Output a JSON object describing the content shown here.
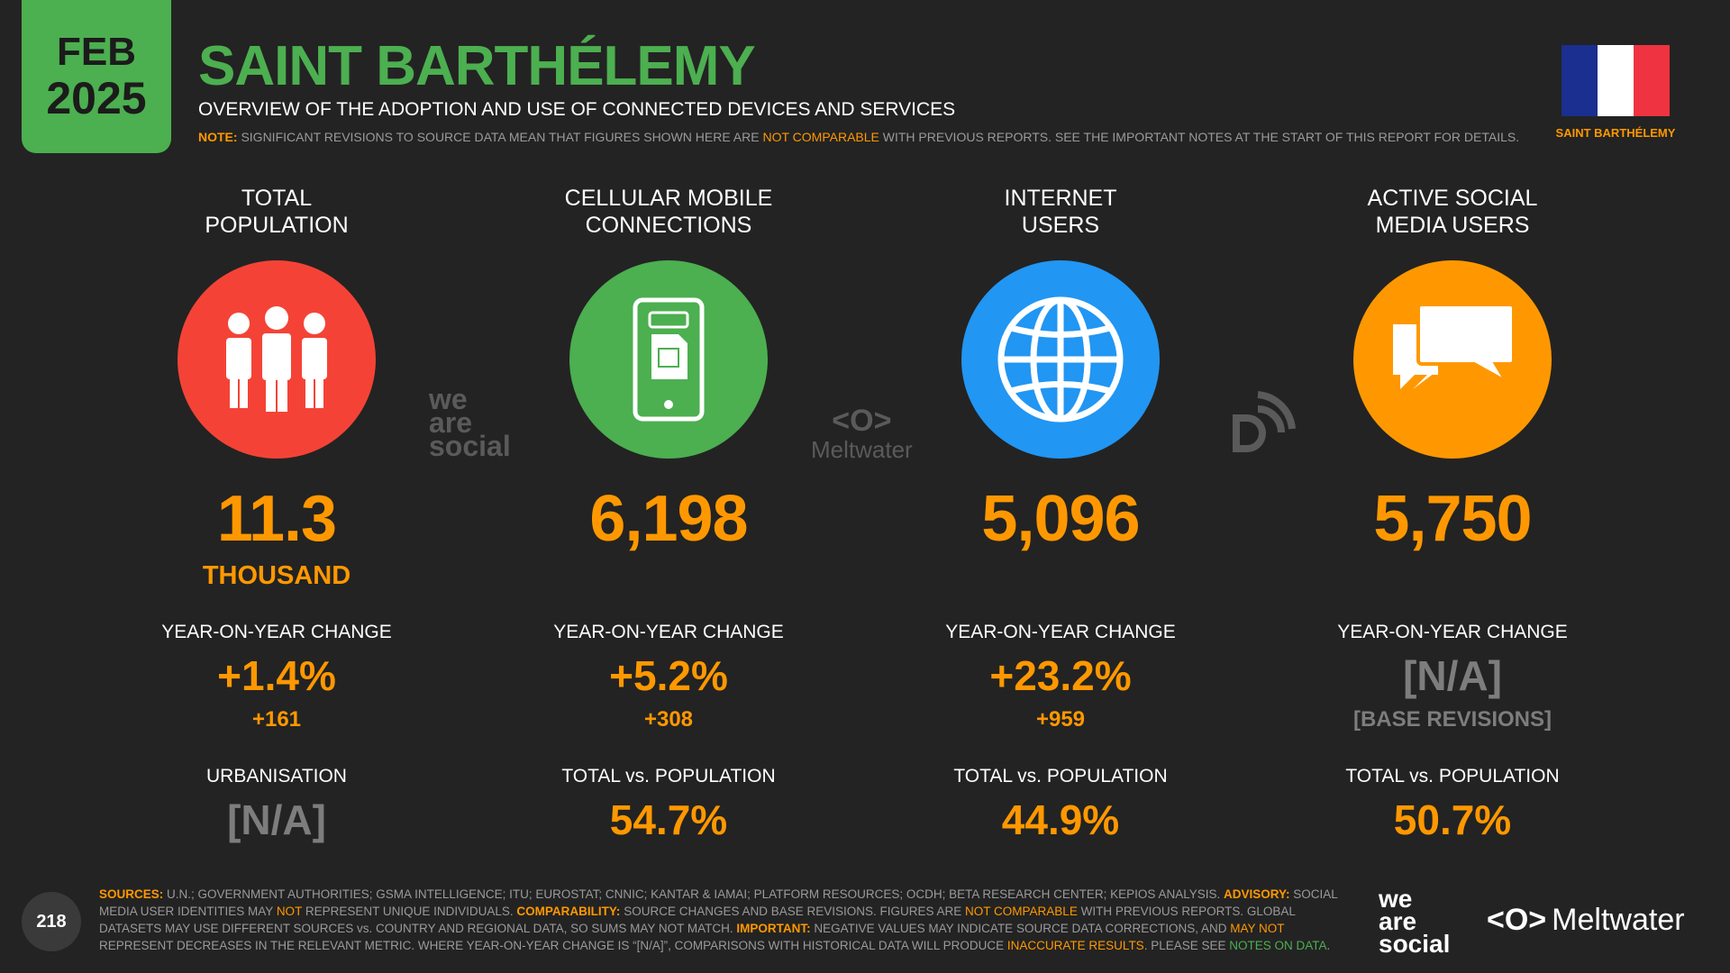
{
  "badge": {
    "month": "FEB",
    "year": "2025"
  },
  "title": "SAINT BARTHÉLEMY",
  "subtitle": "OVERVIEW OF THE ADOPTION AND USE OF CONNECTED DEVICES AND SERVICES",
  "note": {
    "label": "NOTE:",
    "text1": "SIGNIFICANT REVISIONS TO SOURCE DATA MEAN THAT FIGURES SHOWN HERE ARE",
    "highlight": "NOT COMPARABLE",
    "text2": "WITH PREVIOUS REPORTS. SEE THE IMPORTANT NOTES AT THE START OF THIS REPORT FOR DETAILS."
  },
  "flag": {
    "label": "SAINT BARTHÉLEMY",
    "colors": [
      "#1a2f8f",
      "#ffffff",
      "#ef3340"
    ]
  },
  "colors": {
    "green": "#4caf50",
    "orange": "#ff9800",
    "red": "#f44336",
    "blue": "#2196f3",
    "background": "#232323"
  },
  "columns": [
    {
      "heading_line1": "TOTAL",
      "heading_line2": "POPULATION",
      "icon": "people-icon",
      "color": "#f44336",
      "value": "11.3",
      "unit": "THOUSAND",
      "change_label": "YEAR-ON-YEAR CHANGE",
      "change_pct": "+1.4%",
      "change_abs": "+161",
      "bottom_label": "URBANISATION",
      "bottom_value": "[N/A]"
    },
    {
      "heading_line1": "CELLULAR MOBILE",
      "heading_line2": "CONNECTIONS",
      "icon": "mobile-phone-icon",
      "color": "#4caf50",
      "value": "6,198",
      "unit": "",
      "change_label": "YEAR-ON-YEAR CHANGE",
      "change_pct": "+5.2%",
      "change_abs": "+308",
      "bottom_label": "TOTAL vs. POPULATION",
      "bottom_value": "54.7%"
    },
    {
      "heading_line1": "INTERNET",
      "heading_line2": "USERS",
      "icon": "globe-icon",
      "color": "#2196f3",
      "value": "5,096",
      "unit": "",
      "change_label": "YEAR-ON-YEAR CHANGE",
      "change_pct": "+23.2%",
      "change_abs": "+959",
      "bottom_label": "TOTAL vs. POPULATION",
      "bottom_value": "44.9%"
    },
    {
      "heading_line1": "ACTIVE SOCIAL",
      "heading_line2": "MEDIA USERS",
      "icon": "speech-bubbles-icon",
      "color": "#ff9800",
      "value": "5,750",
      "unit": "",
      "change_label": "YEAR-ON-YEAR CHANGE",
      "change_pct": "[N/A]",
      "change_abs": "[BASE REVISIONS]",
      "bottom_label": "TOTAL vs. POPULATION",
      "bottom_value": "50.7%"
    }
  ],
  "mid_logos": {
    "we": "we",
    "are": "are",
    "social": "social",
    "meltwater": "Meltwater"
  },
  "footer": {
    "sources_label": "SOURCES:",
    "sources": "U.N.; GOVERNMENT AUTHORITIES; GSMA INTELLIGENCE; ITU; EUROSTAT; CNNIC; KANTAR & IAMAI; PLATFORM RESOURCES; OCDH; BETA RESEARCH CENTER; KEPIOS ANALYSIS.",
    "advisory_label": "ADVISORY:",
    "advisory1": "SOCIAL MEDIA USER IDENTITIES MAY",
    "advisory_not": "NOT",
    "advisory2": "REPRESENT UNIQUE INDIVIDUALS.",
    "comparability_label": "COMPARABILITY:",
    "comparability1": "SOURCE CHANGES AND BASE REVISIONS. FIGURES ARE",
    "comparability_hl": "NOT COMPARABLE",
    "comparability2": "WITH PREVIOUS REPORTS. GLOBAL DATASETS MAY USE DIFFERENT SOURCES vs. COUNTRY AND REGIONAL DATA, SO SUMS MAY NOT MATCH.",
    "important_label": "IMPORTANT:",
    "important1": "NEGATIVE VALUES MAY INDICATE SOURCE DATA CORRECTIONS, AND",
    "important_hl": "MAY NOT",
    "important2": "REPRESENT DECREASES IN THE RELEVANT METRIC. WHERE YEAR-ON-YEAR CHANGE IS “[N/A]”, COMPARISONS WITH HISTORICAL DATA WILL PRODUCE",
    "important_hl2": "INACCURATE RESULTS",
    "important3": ". PLEASE SEE",
    "notes_link": "NOTES ON DATA",
    "end": "."
  },
  "page_number": "218",
  "logos": {
    "we": "we",
    "are": "are",
    "social": "social",
    "meltwater": "Meltwater"
  }
}
